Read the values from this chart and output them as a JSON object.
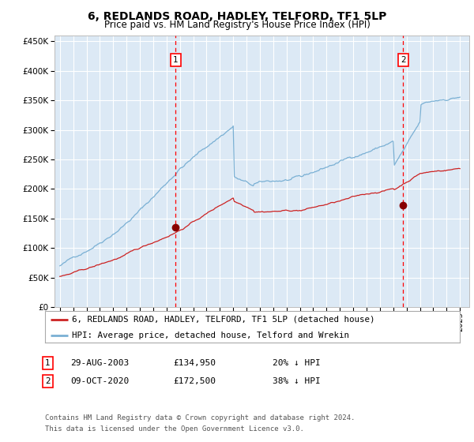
{
  "title": "6, REDLANDS ROAD, HADLEY, TELFORD, TF1 5LP",
  "subtitle": "Price paid vs. HM Land Registry's House Price Index (HPI)",
  "background_color": "#ffffff",
  "plot_bg_color": "#dce9f5",
  "hpi_color": "#7ab0d4",
  "price_color": "#cc2222",
  "legend_line1": "6, REDLANDS ROAD, HADLEY, TELFORD, TF1 5LP (detached house)",
  "legend_line2": "HPI: Average price, detached house, Telford and Wrekin",
  "footer1": "Contains HM Land Registry data © Crown copyright and database right 2024.",
  "footer2": "This data is licensed under the Open Government Licence v3.0.",
  "ylim_min": 0,
  "ylim_max": 460000,
  "marker1_x": 2003.67,
  "marker1_price": 134950,
  "marker2_x": 2020.75,
  "marker2_price": 172500
}
